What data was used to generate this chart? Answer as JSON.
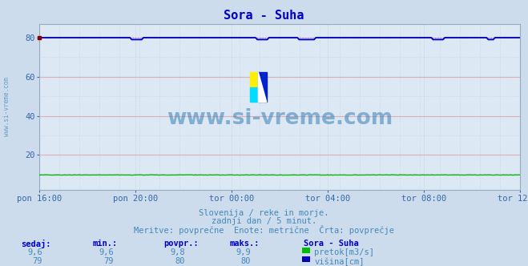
{
  "title": "Sora - Suha",
  "bg_color": "#ccdcec",
  "plot_bg_color": "#dce8f4",
  "grid_color_major": "#ee9999",
  "grid_color_minor": "#bbccdd",
  "xlabel_ticks": [
    "pon 16:00",
    "pon 20:00",
    "tor 00:00",
    "tor 04:00",
    "tor 08:00",
    "tor 12:00"
  ],
  "yticks": [
    20,
    40,
    60,
    80
  ],
  "ylim": [
    2,
    87
  ],
  "n_points": 288,
  "height_color": "#0000bb",
  "height_dotted_color": "#8888ff",
  "flow_color": "#00bb00",
  "subtitle1": "Slovenija / reke in morje.",
  "subtitle2": "zadnji dan / 5 minut.",
  "subtitle3": "Meritve: povprečne  Enote: metrične  Črta: povprečje",
  "legend_title": "Sora - Suha",
  "legend_flow_label": "pretok[m3/s]",
  "legend_height_label": "višina[cm]",
  "table_headers": [
    "sedaj:",
    "min.:",
    "povpr.:",
    "maks.:"
  ],
  "flow_sedaj": "9,6",
  "flow_min_str": "9,6",
  "flow_povpr": "9,8",
  "flow_maks": "9,9",
  "height_sedaj": "79",
  "height_min_str": "79",
  "height_povpr": "80",
  "height_maks": "80",
  "watermark": "www.si-vreme.com",
  "watermark_color": "#4488bb",
  "title_color": "#0000cc",
  "text_color": "#4488bb",
  "label_color": "#3366aa",
  "header_color": "#0000cc"
}
